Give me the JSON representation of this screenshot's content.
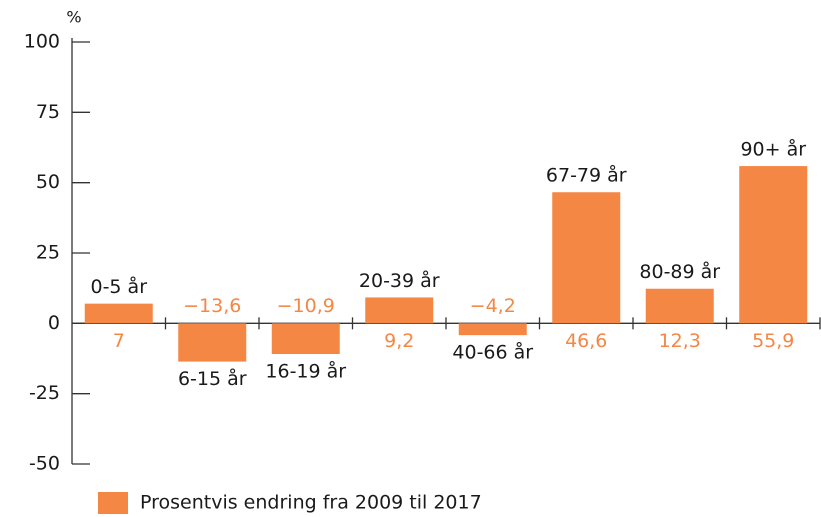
{
  "chart_data": {
    "type": "bar",
    "y_label": "%",
    "categories": [
      "0-5 år",
      "6-15 år",
      "16-19 år",
      "20-39 år",
      "40-66 år",
      "67-79 år",
      "80-89 år",
      "90+ år"
    ],
    "series": [
      {
        "name": "Prosentvis endring fra 2009 til 2017",
        "color": "#f58745",
        "values": [
          7,
          -13.6,
          -10.9,
          9.2,
          -4.2,
          46.6,
          12.3,
          55.9
        ],
        "value_labels": [
          "7",
          "−13,6",
          "−10,9",
          "9,2",
          "−4,2",
          "46,6",
          "12,3",
          "55,9"
        ]
      }
    ],
    "ylim": [
      -50,
      100
    ],
    "yticks": [
      100,
      75,
      50,
      25,
      0,
      -25,
      -50
    ],
    "grid": false
  }
}
